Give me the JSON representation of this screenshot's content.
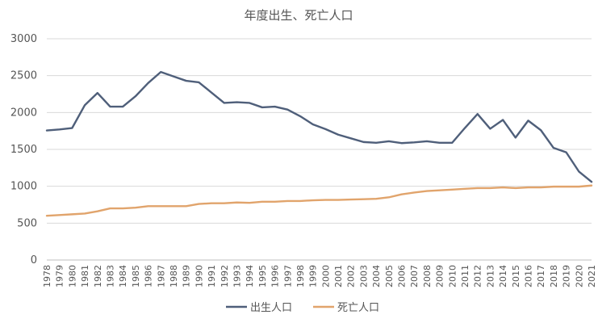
{
  "chart_data": {
    "type": "line",
    "title": "年度出生、死亡人口",
    "xlabel": "",
    "ylabel": "",
    "ylim": [
      0,
      3000
    ],
    "yticks": [
      "0",
      "500",
      "1000",
      "1500",
      "2000",
      "2500",
      "3000"
    ],
    "grid": true,
    "legend_position": "bottom",
    "x": [
      "1978",
      "1979",
      "1980",
      "1981",
      "1982",
      "1983",
      "1984",
      "1985",
      "1986",
      "1987",
      "1988",
      "1989",
      "1990",
      "1991",
      "1992",
      "1993",
      "1994",
      "1995",
      "1996",
      "1997",
      "1998",
      "1999",
      "2000",
      "2001",
      "2002",
      "2003",
      "2004",
      "2005",
      "2006",
      "2007",
      "2008",
      "2009",
      "2010",
      "2011",
      "2012",
      "2013",
      "2014",
      "2015",
      "2016",
      "2017",
      "2018",
      "2019",
      "2020",
      "2021"
    ],
    "series": [
      {
        "name": "出生人口",
        "color": "#4f5f7a",
        "values": [
          1757,
          1770,
          1790,
          2100,
          2265,
          2080,
          2080,
          2220,
          2400,
          2550,
          2490,
          2430,
          2410,
          2270,
          2130,
          2140,
          2130,
          2070,
          2080,
          2040,
          1950,
          1840,
          1775,
          1700,
          1650,
          1600,
          1590,
          1610,
          1585,
          1595,
          1610,
          1590,
          1590,
          1790,
          1980,
          1780,
          1900,
          1660,
          1890,
          1760,
          1520,
          1460,
          1200,
          1060
        ]
      },
      {
        "name": "死亡人口",
        "color": "#e1a46c",
        "values": [
          600,
          610,
          620,
          630,
          660,
          700,
          700,
          710,
          730,
          730,
          730,
          730,
          760,
          770,
          770,
          780,
          775,
          790,
          790,
          800,
          800,
          810,
          815,
          815,
          820,
          825,
          830,
          850,
          890,
          915,
          935,
          945,
          955,
          965,
          975,
          975,
          985,
          975,
          985,
          985,
          995,
          995,
          995,
          1010
        ]
      }
    ]
  }
}
